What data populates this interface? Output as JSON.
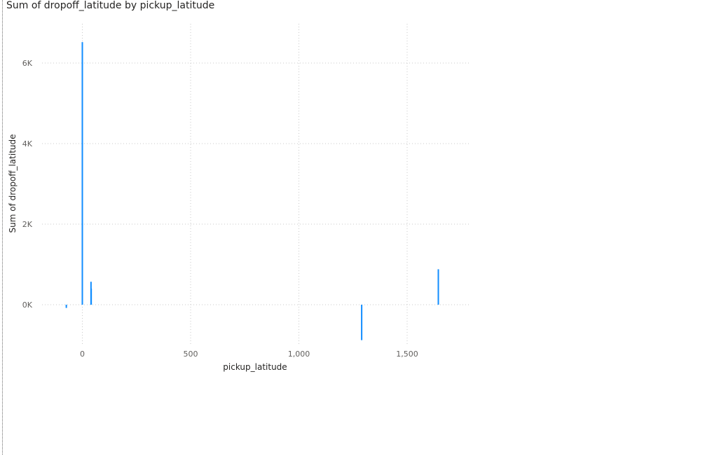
{
  "chart_data": {
    "type": "bar",
    "title": "Sum of dropoff_latitude by pickup_latitude",
    "xlabel": "pickup_latitude",
    "ylabel": "Sum of dropoff_latitude",
    "xlim": [
      -150,
      1780
    ],
    "ylim": [
      -1000,
      6800
    ],
    "x_ticks": [
      {
        "value": 0,
        "label": "0"
      },
      {
        "value": 500,
        "label": "500"
      },
      {
        "value": 1000,
        "label": "1,000"
      },
      {
        "value": 1500,
        "label": "1,500"
      }
    ],
    "y_ticks": [
      {
        "value": 0,
        "label": "0K"
      },
      {
        "value": 2000,
        "label": "2K"
      },
      {
        "value": 4000,
        "label": "4K"
      },
      {
        "value": 6000,
        "label": "6K"
      }
    ],
    "grid": true,
    "color": "#118dff",
    "points": [
      {
        "x": -74,
        "y": -80
      },
      {
        "x": 0,
        "y": 6520
      },
      {
        "x": 40,
        "y": 570
      },
      {
        "x": 41,
        "y": 400
      },
      {
        "x": 1290,
        "y": -880
      },
      {
        "x": 1644,
        "y": 880
      }
    ]
  }
}
